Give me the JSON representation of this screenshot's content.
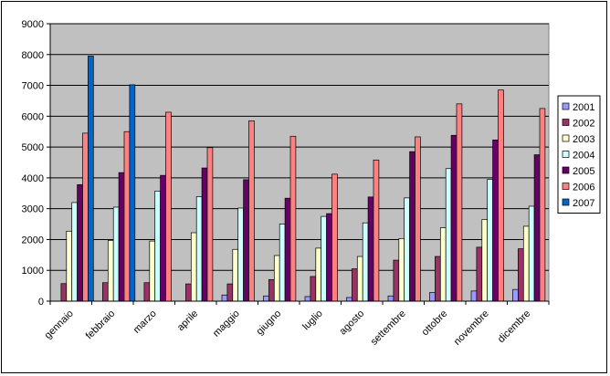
{
  "chart_data": {
    "type": "bar",
    "title": "",
    "xlabel": "",
    "ylabel": "",
    "ylim": [
      0,
      9000
    ],
    "yticks": [
      0,
      1000,
      2000,
      3000,
      4000,
      5000,
      6000,
      7000,
      8000,
      9000
    ],
    "grid": true,
    "legend_position": "right",
    "categories": [
      "gennaio",
      "febbraio",
      "marzo",
      "aprile",
      "maggio",
      "giugno",
      "luglio",
      "agosto",
      "settembre",
      "ottobre",
      "novembre",
      "dicembre"
    ],
    "series": [
      {
        "name": "2001",
        "color": "#9999ff",
        "values": [
          0,
          0,
          0,
          0,
          200,
          170,
          150,
          120,
          170,
          280,
          330,
          380
        ]
      },
      {
        "name": "2002",
        "color": "#993366",
        "values": [
          570,
          600,
          600,
          560,
          560,
          700,
          800,
          1050,
          1330,
          1450,
          1750,
          1700
        ]
      },
      {
        "name": "2003",
        "color": "#ffffcc",
        "values": [
          2270,
          1970,
          1950,
          2220,
          1680,
          1480,
          1720,
          1450,
          2030,
          2380,
          2650,
          2430
        ]
      },
      {
        "name": "2004",
        "color": "#ccffff",
        "values": [
          3200,
          3050,
          3570,
          3390,
          3020,
          2500,
          2750,
          2540,
          3350,
          4300,
          3950,
          3080
        ]
      },
      {
        "name": "2005",
        "color": "#660066",
        "values": [
          3780,
          4170,
          4080,
          4320,
          3940,
          3340,
          2840,
          3380,
          4850,
          5380,
          5230,
          4750
        ]
      },
      {
        "name": "2006",
        "color": "#ff8080",
        "values": [
          5450,
          5500,
          6130,
          4980,
          5850,
          5350,
          4120,
          4580,
          5330,
          6400,
          6850,
          6250
        ]
      },
      {
        "name": "2007",
        "color": "#0066cc",
        "values": [
          7950,
          7020,
          null,
          null,
          null,
          null,
          null,
          null,
          null,
          null,
          null,
          null
        ]
      }
    ]
  }
}
